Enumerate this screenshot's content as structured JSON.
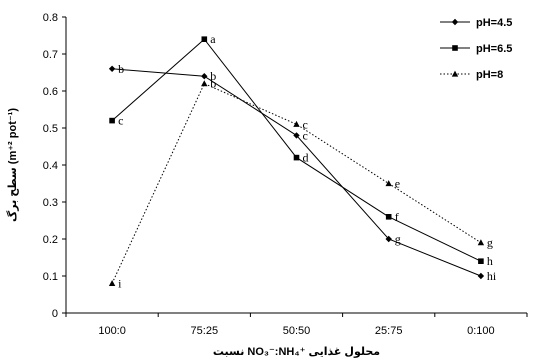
{
  "chart_data": {
    "type": "line",
    "categories": [
      "100:0",
      "75:25",
      "50:50",
      "25:75",
      "0:100"
    ],
    "xlabel": "نسبت NO₃⁻:NH₄⁺ محلول غذایی",
    "ylabel": "سطح برگ (m⁺² pot⁻¹)",
    "ylim": [
      0,
      0.8
    ],
    "yticks": [
      0,
      0.1,
      0.2,
      0.3,
      0.4,
      0.5,
      0.6,
      0.7,
      0.8
    ],
    "ytick_labels": [
      "0",
      "0.1",
      "0.2",
      "0.3",
      "0.4",
      "0.5",
      "0.6",
      "0.7",
      "0.8"
    ],
    "legend_position": "top-right",
    "grid": false,
    "series": [
      {
        "name": "pH=4.5",
        "marker": "diamond",
        "line_style": "solid",
        "values": [
          0.66,
          0.64,
          0.48,
          0.2,
          0.1
        ],
        "labels": [
          "b",
          "b",
          "c",
          "g",
          "hi"
        ]
      },
      {
        "name": "pH=6.5",
        "marker": "square",
        "line_style": "solid",
        "values": [
          0.52,
          0.74,
          0.42,
          0.26,
          0.14
        ],
        "labels": [
          "c",
          "a",
          "d",
          "f",
          "h"
        ]
      },
      {
        "name": "pH=8",
        "marker": "triangle",
        "line_style": "dotted",
        "values": [
          0.08,
          0.62,
          0.51,
          0.35,
          0.19
        ],
        "labels": [
          "i",
          "b",
          "c",
          "e",
          "g"
        ]
      }
    ]
  }
}
